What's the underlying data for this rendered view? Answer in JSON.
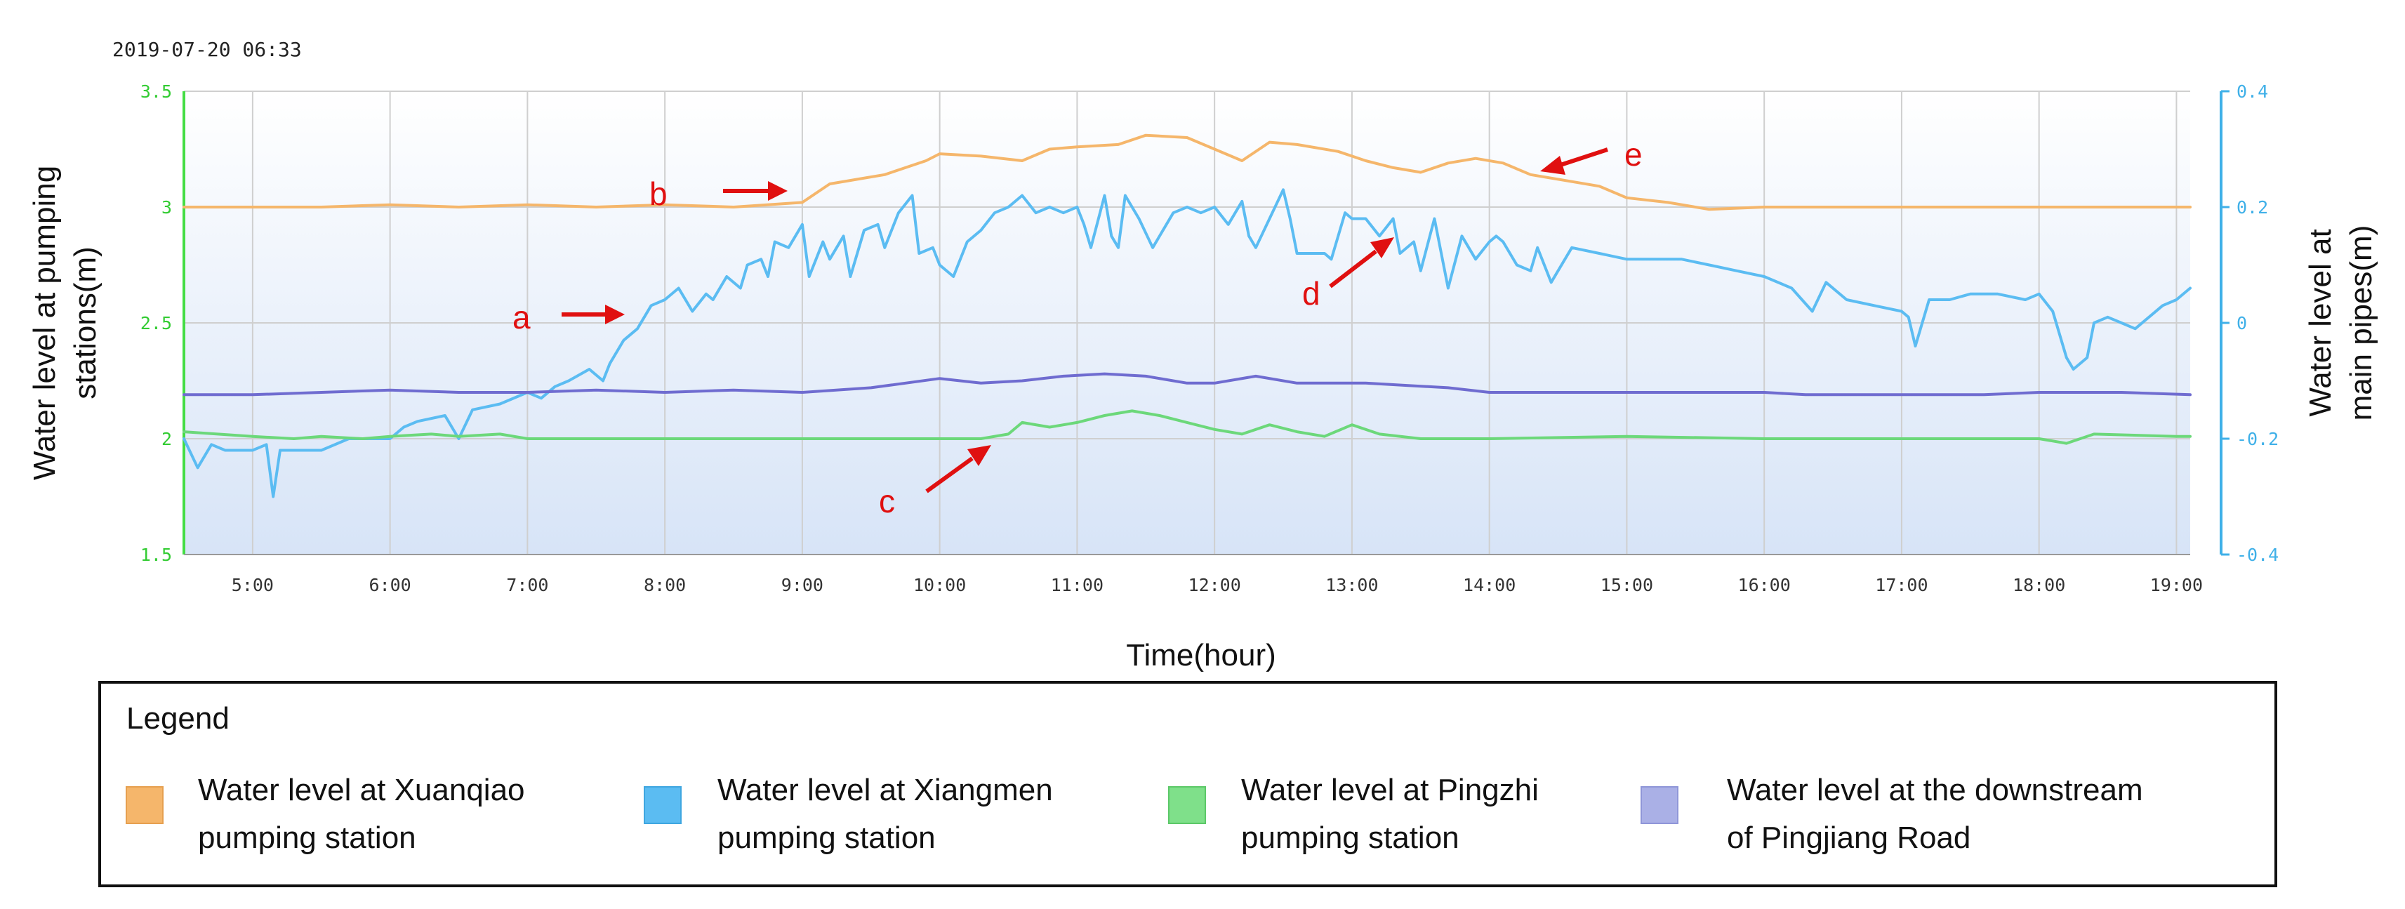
{
  "timestamp": "2019-07-20 06:33",
  "colors": {
    "xuanqiao": "#f5b66b",
    "xiangmen": "#5bbcf2",
    "pingzhi": "#6cd87a",
    "pingjiang": "#6f6cd0",
    "left_axis": "#44dd44",
    "right_axis": "#3fb0e8",
    "annotation": "#e01010",
    "grid": "#c8c8c8"
  },
  "chart_data": {
    "type": "line",
    "xlabel": "Time(hour)",
    "ylabel_left": "Water level at pumping stations(m)",
    "ylabel_left_lines": [
      "Water level at pumping",
      "stations(m)"
    ],
    "ylabel_right": "Water level at main pipes(m)",
    "ylabel_right_lines": [
      "Water level at",
      "main pipes(m)"
    ],
    "xlim": [
      4.5,
      19.1
    ],
    "ylim_left": [
      1.5,
      3.5
    ],
    "ylim_right": [
      -0.4,
      0.4
    ],
    "x_ticks": [
      5,
      6,
      7,
      8,
      9,
      10,
      11,
      12,
      13,
      14,
      15,
      16,
      17,
      18,
      19
    ],
    "x_tick_labels": [
      "5:00",
      "6:00",
      "7:00",
      "8:00",
      "9:00",
      "10:00",
      "11:00",
      "12:00",
      "13:00",
      "14:00",
      "15:00",
      "16:00",
      "17:00",
      "18:00",
      "19:00"
    ],
    "y_ticks_left": [
      1.5,
      2,
      2.5,
      3,
      3.5
    ],
    "y_tick_labels_left": [
      "1.5",
      "2",
      "2.5",
      "3",
      "3.5"
    ],
    "y_ticks_right": [
      -0.4,
      -0.2,
      0,
      0.2,
      0.4
    ],
    "y_tick_labels_right": [
      "-0.4",
      "-0.2",
      "0",
      "0.2",
      "0.4"
    ],
    "grid": true,
    "legend_title": "Legend",
    "legend_placement": "bottom",
    "series": [
      {
        "name": "Water level at Xuanqiao pumping station",
        "legend_lines": [
          "Water level at Xuanqiao",
          "pumping station"
        ],
        "axis": "left",
        "color": "#f5b66b",
        "x": [
          4.5,
          5,
          5.5,
          6,
          6.5,
          7,
          7.5,
          8,
          8.5,
          9,
          9.2,
          9.4,
          9.6,
          9.9,
          10,
          10.3,
          10.6,
          10.8,
          11,
          11.3,
          11.5,
          11.8,
          12,
          12.2,
          12.4,
          12.6,
          12.9,
          13.1,
          13.3,
          13.5,
          13.7,
          13.9,
          14.1,
          14.3,
          14.6,
          14.8,
          15,
          15.3,
          15.6,
          16,
          17,
          18,
          19.1
        ],
        "y": [
          3.0,
          3.0,
          3.0,
          3.01,
          3.0,
          3.01,
          3.0,
          3.01,
          3.0,
          3.02,
          3.1,
          3.12,
          3.14,
          3.2,
          3.23,
          3.22,
          3.2,
          3.25,
          3.26,
          3.27,
          3.31,
          3.3,
          3.25,
          3.2,
          3.28,
          3.27,
          3.24,
          3.2,
          3.17,
          3.15,
          3.19,
          3.21,
          3.19,
          3.14,
          3.11,
          3.09,
          3.04,
          3.02,
          2.99,
          3.0,
          3.0,
          3.0,
          3.0
        ]
      },
      {
        "name": "Water level at Xiangmen pumping station",
        "legend_lines": [
          "Water level at Xiangmen",
          "pumping station"
        ],
        "axis": "right",
        "color": "#5bbcf2",
        "x": [
          4.5,
          4.6,
          4.7,
          4.8,
          5.0,
          5.1,
          5.15,
          5.2,
          5.3,
          5.5,
          5.7,
          5.9,
          6.0,
          6.1,
          6.2,
          6.4,
          6.5,
          6.6,
          6.8,
          7.0,
          7.1,
          7.2,
          7.3,
          7.45,
          7.55,
          7.6,
          7.7,
          7.8,
          7.9,
          8.0,
          8.1,
          8.2,
          8.3,
          8.35,
          8.45,
          8.55,
          8.6,
          8.7,
          8.75,
          8.8,
          8.9,
          9.0,
          9.05,
          9.15,
          9.2,
          9.3,
          9.35,
          9.45,
          9.55,
          9.6,
          9.7,
          9.8,
          9.85,
          9.95,
          10.0,
          10.1,
          10.2,
          10.3,
          10.4,
          10.5,
          10.6,
          10.7,
          10.8,
          10.9,
          11.0,
          11.05,
          11.1,
          11.2,
          11.25,
          11.3,
          11.35,
          11.45,
          11.55,
          11.7,
          11.8,
          11.9,
          12.0,
          12.1,
          12.2,
          12.25,
          12.3,
          12.4,
          12.5,
          12.55,
          12.6,
          12.7,
          12.8,
          12.85,
          12.95,
          13.0,
          13.1,
          13.2,
          13.3,
          13.35,
          13.45,
          13.5,
          13.6,
          13.7,
          13.8,
          13.9,
          14.0,
          14.05,
          14.1,
          14.2,
          14.3,
          14.35,
          14.45,
          14.6,
          14.8,
          15.0,
          15.2,
          15.4,
          15.6,
          15.8,
          16.0,
          16.2,
          16.35,
          16.45,
          16.6,
          16.8,
          17.0,
          17.05,
          17.1,
          17.2,
          17.35,
          17.5,
          17.7,
          17.9,
          18.0,
          18.1,
          18.2,
          18.25,
          18.35,
          18.4,
          18.5,
          18.6,
          18.7,
          18.9,
          19.0,
          19.1
        ],
        "y": [
          -0.2,
          -0.25,
          -0.21,
          -0.22,
          -0.22,
          -0.21,
          -0.3,
          -0.22,
          -0.22,
          -0.22,
          -0.2,
          -0.2,
          -0.2,
          -0.18,
          -0.17,
          -0.16,
          -0.2,
          -0.15,
          -0.14,
          -0.12,
          -0.13,
          -0.11,
          -0.1,
          -0.08,
          -0.1,
          -0.07,
          -0.03,
          -0.01,
          0.03,
          0.04,
          0.06,
          0.02,
          0.05,
          0.04,
          0.08,
          0.06,
          0.1,
          0.11,
          0.08,
          0.14,
          0.13,
          0.17,
          0.08,
          0.14,
          0.11,
          0.15,
          0.08,
          0.16,
          0.17,
          0.13,
          0.19,
          0.22,
          0.12,
          0.13,
          0.1,
          0.08,
          0.14,
          0.16,
          0.19,
          0.2,
          0.22,
          0.19,
          0.2,
          0.19,
          0.2,
          0.17,
          0.13,
          0.22,
          0.15,
          0.13,
          0.22,
          0.18,
          0.13,
          0.19,
          0.2,
          0.19,
          0.2,
          0.17,
          0.21,
          0.15,
          0.13,
          0.18,
          0.23,
          0.18,
          0.12,
          0.12,
          0.12,
          0.11,
          0.19,
          0.18,
          0.18,
          0.15,
          0.18,
          0.12,
          0.14,
          0.09,
          0.18,
          0.06,
          0.15,
          0.11,
          0.14,
          0.15,
          0.14,
          0.1,
          0.09,
          0.13,
          0.07,
          0.13,
          0.12,
          0.11,
          0.11,
          0.11,
          0.1,
          0.09,
          0.08,
          0.06,
          0.02,
          0.07,
          0.04,
          0.03,
          0.02,
          0.01,
          -0.04,
          0.04,
          0.04,
          0.05,
          0.05,
          0.04,
          0.05,
          0.02,
          -0.06,
          -0.08,
          -0.06,
          0.0,
          0.01,
          0.0,
          -0.01,
          0.03,
          0.04,
          0.06
        ]
      },
      {
        "name": "Water level at Pingzhi pumping station",
        "legend_lines": [
          "Water level at Pingzhi",
          "pumping station"
        ],
        "axis": "left",
        "color": "#6cd87a",
        "x": [
          4.5,
          5,
          5.3,
          5.5,
          5.8,
          6,
          6.3,
          6.5,
          6.8,
          7,
          7.5,
          8,
          9,
          10,
          10.3,
          10.5,
          10.6,
          10.8,
          11,
          11.2,
          11.4,
          11.6,
          11.8,
          12,
          12.2,
          12.4,
          12.6,
          12.8,
          13,
          13.2,
          13.5,
          14,
          15,
          16,
          17,
          17.5,
          18,
          18.2,
          18.4,
          19,
          19.1
        ],
        "y": [
          2.03,
          2.01,
          2.0,
          2.01,
          2.0,
          2.01,
          2.02,
          2.01,
          2.02,
          2.0,
          2.0,
          2.0,
          2.0,
          2.0,
          2.0,
          2.02,
          2.07,
          2.05,
          2.07,
          2.1,
          2.12,
          2.1,
          2.07,
          2.04,
          2.02,
          2.06,
          2.03,
          2.01,
          2.06,
          2.02,
          2.0,
          2.0,
          2.01,
          2.0,
          2.0,
          2.0,
          2.0,
          1.98,
          2.02,
          2.01,
          2.01
        ]
      },
      {
        "name": "Water level at the downstream of Pingjiang Road",
        "legend_lines": [
          "Water level at the downstream",
          "of Pingjiang Road"
        ],
        "axis": "left",
        "color": "#6f6cd0",
        "x": [
          4.5,
          5,
          5.5,
          6,
          6.5,
          7,
          7.5,
          8,
          8.5,
          9,
          9.5,
          10,
          10.3,
          10.6,
          10.9,
          11.2,
          11.5,
          11.8,
          12,
          12.3,
          12.6,
          12.9,
          13.1,
          13.4,
          13.7,
          14,
          14.3,
          14.6,
          14.9,
          15.2,
          15.5,
          16,
          16.3,
          16.6,
          17,
          17.3,
          17.6,
          18,
          18.3,
          18.6,
          19.1
        ],
        "y": [
          2.19,
          2.19,
          2.2,
          2.21,
          2.2,
          2.2,
          2.21,
          2.2,
          2.21,
          2.2,
          2.22,
          2.26,
          2.24,
          2.25,
          2.27,
          2.28,
          2.27,
          2.24,
          2.24,
          2.27,
          2.24,
          2.24,
          2.24,
          2.23,
          2.22,
          2.2,
          2.2,
          2.2,
          2.2,
          2.2,
          2.2,
          2.2,
          2.19,
          2.19,
          2.19,
          2.19,
          2.19,
          2.2,
          2.2,
          2.2,
          2.19
        ]
      }
    ],
    "annotations": [
      {
        "label": "a",
        "at": [
          7.8,
          2.52
        ]
      },
      {
        "label": "b",
        "at": [
          9.0,
          3.06
        ]
      },
      {
        "label": "c",
        "at": [
          10.5,
          2.0
        ]
      },
      {
        "label": "d",
        "at": [
          13.4,
          2.85
        ]
      },
      {
        "label": "e",
        "at": [
          14.2,
          3.15
        ]
      }
    ]
  }
}
